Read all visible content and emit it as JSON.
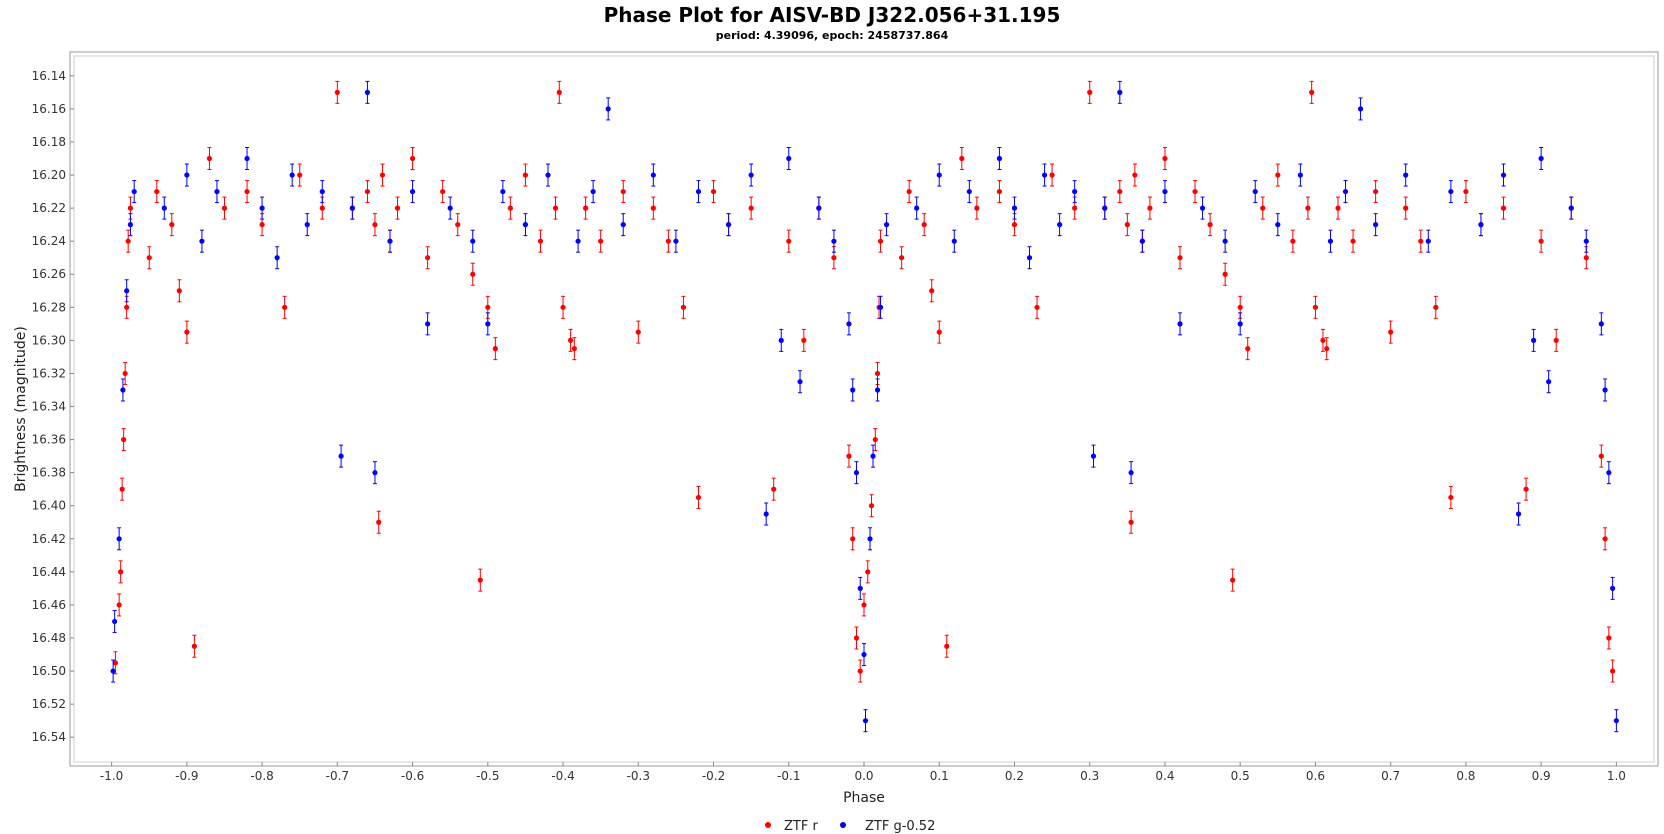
{
  "chart_data": {
    "type": "scatter",
    "title": "Phase Plot for AISV-BD J322.056+31.195",
    "subtitle": "period: 4.39096, epoch: 2458737.864",
    "xlabel": "Phase",
    "ylabel": "Brightness (magnitude)",
    "xlim": [
      -1.05,
      1.05
    ],
    "ylim": [
      16.555,
      16.128
    ],
    "y_inverted": true,
    "x_ticks": [
      -1.0,
      -0.9,
      -0.8,
      -0.7,
      -0.6,
      -0.5,
      -0.4,
      -0.3,
      -0.2,
      -0.1,
      0.0,
      0.1,
      0.2,
      0.3,
      0.4,
      0.5,
      0.6,
      0.7,
      0.8,
      0.9,
      1.0
    ],
    "x_tick_labels": [
      "-1.0",
      "-0.9",
      "-0.8",
      "-0.7",
      "-0.6",
      "-0.5",
      "-0.4",
      "-0.3",
      "-0.2",
      "-0.1",
      "0.0",
      "0.1",
      "0.2",
      "0.3",
      "0.4",
      "0.5",
      "0.6",
      "0.7",
      "0.8",
      "0.9",
      "1.0"
    ],
    "y_ticks": [
      16.14,
      16.16,
      16.18,
      16.2,
      16.22,
      16.24,
      16.26,
      16.28,
      16.3,
      16.32,
      16.34,
      16.36,
      16.38,
      16.4,
      16.42,
      16.44,
      16.46,
      16.48,
      16.5,
      16.52,
      16.54
    ],
    "y_tick_labels": [
      "16.14",
      "16.16",
      "16.18",
      "16.20",
      "16.22",
      "16.24",
      "16.26",
      "16.28",
      "16.30",
      "16.32",
      "16.34",
      "16.36",
      "16.38",
      "16.40",
      "16.42",
      "16.44",
      "16.46",
      "16.48",
      "16.50",
      "16.52",
      "16.54"
    ],
    "grid": false,
    "legend_position": "bottom-center",
    "series": [
      {
        "name": "ZTF r",
        "color": "#ff0000",
        "points": [
          [
            -0.995,
            16.495
          ],
          [
            -0.99,
            16.46
          ],
          [
            -0.988,
            16.44
          ],
          [
            -0.986,
            16.39
          ],
          [
            -0.984,
            16.36
          ],
          [
            -0.982,
            16.32
          ],
          [
            -0.98,
            16.28
          ],
          [
            -0.978,
            16.24
          ],
          [
            -0.975,
            16.22
          ],
          [
            -0.95,
            16.25
          ],
          [
            -0.94,
            16.21
          ],
          [
            -0.92,
            16.23
          ],
          [
            -0.91,
            16.27
          ],
          [
            -0.9,
            16.295
          ],
          [
            -0.89,
            16.485
          ],
          [
            -0.87,
            16.19
          ],
          [
            -0.85,
            16.22
          ],
          [
            -0.82,
            16.21
          ],
          [
            -0.8,
            16.23
          ],
          [
            -0.77,
            16.28
          ],
          [
            -0.75,
            16.2
          ],
          [
            -0.72,
            16.22
          ],
          [
            -0.7,
            16.15
          ],
          [
            -0.68,
            16.22
          ],
          [
            -0.66,
            16.21
          ],
          [
            -0.65,
            16.23
          ],
          [
            -0.645,
            16.41
          ],
          [
            -0.64,
            16.2
          ],
          [
            -0.63,
            16.24
          ],
          [
            -0.62,
            16.22
          ],
          [
            -0.6,
            16.19
          ],
          [
            -0.58,
            16.25
          ],
          [
            -0.56,
            16.21
          ],
          [
            -0.54,
            16.23
          ],
          [
            -0.52,
            16.26
          ],
          [
            -0.51,
            16.445
          ],
          [
            -0.5,
            16.28
          ],
          [
            -0.49,
            16.305
          ],
          [
            -0.47,
            16.22
          ],
          [
            -0.45,
            16.2
          ],
          [
            -0.43,
            16.24
          ],
          [
            -0.41,
            16.22
          ],
          [
            -0.405,
            16.15
          ],
          [
            -0.4,
            16.28
          ],
          [
            -0.39,
            16.3
          ],
          [
            -0.385,
            16.305
          ],
          [
            -0.37,
            16.22
          ],
          [
            -0.35,
            16.24
          ],
          [
            -0.32,
            16.21
          ],
          [
            -0.3,
            16.295
          ],
          [
            -0.28,
            16.22
          ],
          [
            -0.26,
            16.24
          ],
          [
            -0.24,
            16.28
          ],
          [
            -0.22,
            16.395
          ],
          [
            -0.2,
            16.21
          ],
          [
            -0.18,
            16.23
          ],
          [
            -0.15,
            16.22
          ],
          [
            -0.12,
            16.39
          ],
          [
            -0.1,
            16.24
          ],
          [
            -0.08,
            16.3
          ],
          [
            -0.06,
            16.22
          ],
          [
            -0.04,
            16.25
          ],
          [
            -0.02,
            16.37
          ],
          [
            -0.015,
            16.42
          ],
          [
            -0.01,
            16.48
          ],
          [
            -0.005,
            16.5
          ],
          [
            0.0,
            16.46
          ],
          [
            0.005,
            16.44
          ],
          [
            0.01,
            16.4
          ],
          [
            0.015,
            16.36
          ],
          [
            0.018,
            16.32
          ],
          [
            0.02,
            16.28
          ],
          [
            0.022,
            16.24
          ],
          [
            0.05,
            16.25
          ],
          [
            0.06,
            16.21
          ],
          [
            0.08,
            16.23
          ],
          [
            0.09,
            16.27
          ],
          [
            0.1,
            16.295
          ],
          [
            0.11,
            16.485
          ],
          [
            0.13,
            16.19
          ],
          [
            0.15,
            16.22
          ],
          [
            0.18,
            16.21
          ],
          [
            0.2,
            16.23
          ],
          [
            0.23,
            16.28
          ],
          [
            0.25,
            16.2
          ],
          [
            0.28,
            16.22
          ],
          [
            0.3,
            16.15
          ],
          [
            0.32,
            16.22
          ],
          [
            0.34,
            16.21
          ],
          [
            0.35,
            16.23
          ],
          [
            0.355,
            16.41
          ],
          [
            0.36,
            16.2
          ],
          [
            0.37,
            16.24
          ],
          [
            0.38,
            16.22
          ],
          [
            0.4,
            16.19
          ],
          [
            0.42,
            16.25
          ],
          [
            0.44,
            16.21
          ],
          [
            0.46,
            16.23
          ],
          [
            0.48,
            16.26
          ],
          [
            0.49,
            16.445
          ],
          [
            0.5,
            16.28
          ],
          [
            0.51,
            16.305
          ],
          [
            0.53,
            16.22
          ],
          [
            0.55,
            16.2
          ],
          [
            0.57,
            16.24
          ],
          [
            0.59,
            16.22
          ],
          [
            0.595,
            16.15
          ],
          [
            0.6,
            16.28
          ],
          [
            0.61,
            16.3
          ],
          [
            0.615,
            16.305
          ],
          [
            0.63,
            16.22
          ],
          [
            0.65,
            16.24
          ],
          [
            0.68,
            16.21
          ],
          [
            0.7,
            16.295
          ],
          [
            0.72,
            16.22
          ],
          [
            0.74,
            16.24
          ],
          [
            0.76,
            16.28
          ],
          [
            0.78,
            16.395
          ],
          [
            0.8,
            16.21
          ],
          [
            0.82,
            16.23
          ],
          [
            0.85,
            16.22
          ],
          [
            0.88,
            16.39
          ],
          [
            0.9,
            16.24
          ],
          [
            0.92,
            16.3
          ],
          [
            0.94,
            16.22
          ],
          [
            0.96,
            16.25
          ],
          [
            0.98,
            16.37
          ],
          [
            0.985,
            16.42
          ],
          [
            0.99,
            16.48
          ],
          [
            0.995,
            16.5
          ]
        ]
      },
      {
        "name": "ZTF g-0.52",
        "color": "#0000ff",
        "points": [
          [
            -0.998,
            16.5
          ],
          [
            -0.996,
            16.47
          ],
          [
            -0.99,
            16.42
          ],
          [
            -0.985,
            16.33
          ],
          [
            -0.98,
            16.27
          ],
          [
            -0.975,
            16.23
          ],
          [
            -0.97,
            16.21
          ],
          [
            -0.93,
            16.22
          ],
          [
            -0.9,
            16.2
          ],
          [
            -0.88,
            16.24
          ],
          [
            -0.86,
            16.21
          ],
          [
            -0.82,
            16.19
          ],
          [
            -0.8,
            16.22
          ],
          [
            -0.78,
            16.25
          ],
          [
            -0.76,
            16.2
          ],
          [
            -0.74,
            16.23
          ],
          [
            -0.72,
            16.21
          ],
          [
            -0.695,
            16.37
          ],
          [
            -0.68,
            16.22
          ],
          [
            -0.66,
            16.15
          ],
          [
            -0.65,
            16.38
          ],
          [
            -0.63,
            16.24
          ],
          [
            -0.6,
            16.21
          ],
          [
            -0.58,
            16.29
          ],
          [
            -0.55,
            16.22
          ],
          [
            -0.52,
            16.24
          ],
          [
            -0.5,
            16.29
          ],
          [
            -0.48,
            16.21
          ],
          [
            -0.45,
            16.23
          ],
          [
            -0.42,
            16.2
          ],
          [
            -0.38,
            16.24
          ],
          [
            -0.36,
            16.21
          ],
          [
            -0.34,
            16.16
          ],
          [
            -0.32,
            16.23
          ],
          [
            -0.28,
            16.2
          ],
          [
            -0.25,
            16.24
          ],
          [
            -0.22,
            16.21
          ],
          [
            -0.18,
            16.23
          ],
          [
            -0.15,
            16.2
          ],
          [
            -0.13,
            16.405
          ],
          [
            -0.11,
            16.3
          ],
          [
            -0.1,
            16.19
          ],
          [
            -0.085,
            16.325
          ],
          [
            -0.06,
            16.22
          ],
          [
            -0.04,
            16.24
          ],
          [
            -0.02,
            16.29
          ],
          [
            -0.015,
            16.33
          ],
          [
            -0.01,
            16.38
          ],
          [
            -0.005,
            16.45
          ],
          [
            0.0,
            16.49
          ],
          [
            0.002,
            16.53
          ],
          [
            0.008,
            16.42
          ],
          [
            0.012,
            16.37
          ],
          [
            0.018,
            16.33
          ],
          [
            0.022,
            16.28
          ],
          [
            0.03,
            16.23
          ],
          [
            0.07,
            16.22
          ],
          [
            0.1,
            16.2
          ],
          [
            0.12,
            16.24
          ],
          [
            0.14,
            16.21
          ],
          [
            0.18,
            16.19
          ],
          [
            0.2,
            16.22
          ],
          [
            0.22,
            16.25
          ],
          [
            0.24,
            16.2
          ],
          [
            0.26,
            16.23
          ],
          [
            0.28,
            16.21
          ],
          [
            0.305,
            16.37
          ],
          [
            0.32,
            16.22
          ],
          [
            0.34,
            16.15
          ],
          [
            0.355,
            16.38
          ],
          [
            0.37,
            16.24
          ],
          [
            0.4,
            16.21
          ],
          [
            0.42,
            16.29
          ],
          [
            0.45,
            16.22
          ],
          [
            0.48,
            16.24
          ],
          [
            0.5,
            16.29
          ],
          [
            0.52,
            16.21
          ],
          [
            0.55,
            16.23
          ],
          [
            0.58,
            16.2
          ],
          [
            0.62,
            16.24
          ],
          [
            0.64,
            16.21
          ],
          [
            0.66,
            16.16
          ],
          [
            0.68,
            16.23
          ],
          [
            0.72,
            16.2
          ],
          [
            0.75,
            16.24
          ],
          [
            0.78,
            16.21
          ],
          [
            0.82,
            16.23
          ],
          [
            0.85,
            16.2
          ],
          [
            0.87,
            16.405
          ],
          [
            0.89,
            16.3
          ],
          [
            0.9,
            16.19
          ],
          [
            0.91,
            16.325
          ],
          [
            0.94,
            16.22
          ],
          [
            0.96,
            16.24
          ],
          [
            0.98,
            16.29
          ],
          [
            0.985,
            16.33
          ],
          [
            0.99,
            16.38
          ],
          [
            0.995,
            16.45
          ],
          [
            1.0,
            16.53
          ]
        ]
      }
    ]
  }
}
